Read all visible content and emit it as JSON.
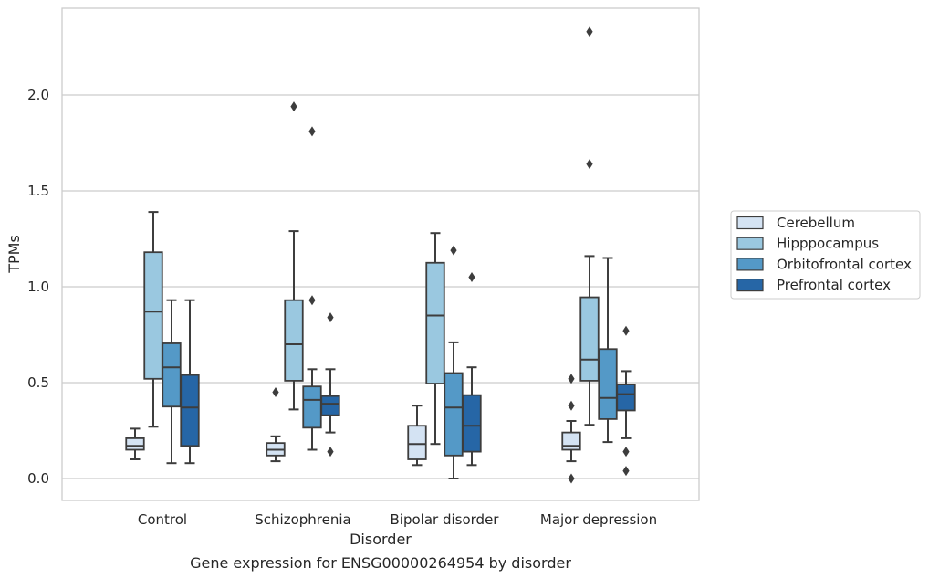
{
  "chart_data": {
    "type": "box",
    "title": "",
    "caption": "Gene expression for ENSG00000264954 by disorder",
    "xlabel": "Disorder",
    "ylabel": "TPMs",
    "ylim": [
      -0.11,
      2.47
    ],
    "yticks": [
      "0.0",
      "0.5",
      "1.0",
      "1.5",
      "2.0"
    ],
    "grid": true,
    "legend_position": "right",
    "categories": [
      "Control",
      "Schizophrenia",
      "Bipolar disorder",
      "Major depression"
    ],
    "series": [
      {
        "name": "Cerebellum",
        "color": "#d4e3f3",
        "boxes": [
          {
            "whislo": 0.1,
            "q1": 0.15,
            "med": 0.17,
            "q3": 0.21,
            "whishi": 0.26,
            "fliers": []
          },
          {
            "whislo": 0.09,
            "q1": 0.12,
            "med": 0.15,
            "q3": 0.185,
            "whishi": 0.22,
            "fliers": [
              0.45
            ]
          },
          {
            "whislo": 0.07,
            "q1": 0.1,
            "med": 0.18,
            "q3": 0.275,
            "whishi": 0.38,
            "fliers": []
          },
          {
            "whislo": 0.09,
            "q1": 0.15,
            "med": 0.17,
            "q3": 0.24,
            "whishi": 0.3,
            "fliers": [
              0.52,
              0.38,
              0.0
            ]
          }
        ]
      },
      {
        "name": "Hipppocampus",
        "color": "#9ac8e0",
        "boxes": [
          {
            "whislo": 0.27,
            "q1": 0.52,
            "med": 0.87,
            "q3": 1.18,
            "whishi": 1.39,
            "fliers": []
          },
          {
            "whislo": 0.36,
            "q1": 0.51,
            "med": 0.7,
            "q3": 0.93,
            "whishi": 1.29,
            "fliers": [
              1.94
            ]
          },
          {
            "whislo": 0.18,
            "q1": 0.495,
            "med": 0.85,
            "q3": 1.125,
            "whishi": 1.28,
            "fliers": []
          },
          {
            "whislo": 0.28,
            "q1": 0.51,
            "med": 0.62,
            "q3": 0.945,
            "whishi": 1.16,
            "fliers": [
              2.33,
              1.64
            ]
          }
        ]
      },
      {
        "name": "Orbitofrontal cortex",
        "color": "#5499c7",
        "boxes": [
          {
            "whislo": 0.08,
            "q1": 0.375,
            "med": 0.58,
            "q3": 0.705,
            "whishi": 0.93,
            "fliers": []
          },
          {
            "whislo": 0.15,
            "q1": 0.265,
            "med": 0.41,
            "q3": 0.48,
            "whishi": 0.57,
            "fliers": [
              1.81,
              0.93
            ]
          },
          {
            "whislo": 0.0,
            "q1": 0.12,
            "med": 0.37,
            "q3": 0.55,
            "whishi": 0.71,
            "fliers": [
              1.19
            ]
          },
          {
            "whislo": 0.19,
            "q1": 0.31,
            "med": 0.42,
            "q3": 0.675,
            "whishi": 1.15,
            "fliers": []
          }
        ]
      },
      {
        "name": "Prefrontal cortex",
        "color": "#2666a6",
        "boxes": [
          {
            "whislo": 0.08,
            "q1": 0.17,
            "med": 0.37,
            "q3": 0.54,
            "whishi": 0.93,
            "fliers": []
          },
          {
            "whislo": 0.24,
            "q1": 0.33,
            "med": 0.39,
            "q3": 0.43,
            "whishi": 0.57,
            "fliers": [
              0.84,
              0.14
            ]
          },
          {
            "whislo": 0.07,
            "q1": 0.14,
            "med": 0.275,
            "q3": 0.435,
            "whishi": 0.58,
            "fliers": [
              1.05
            ]
          },
          {
            "whislo": 0.21,
            "q1": 0.355,
            "med": 0.44,
            "q3": 0.49,
            "whishi": 0.56,
            "fliers": [
              0.77,
              0.14,
              0.04
            ]
          }
        ]
      }
    ]
  }
}
